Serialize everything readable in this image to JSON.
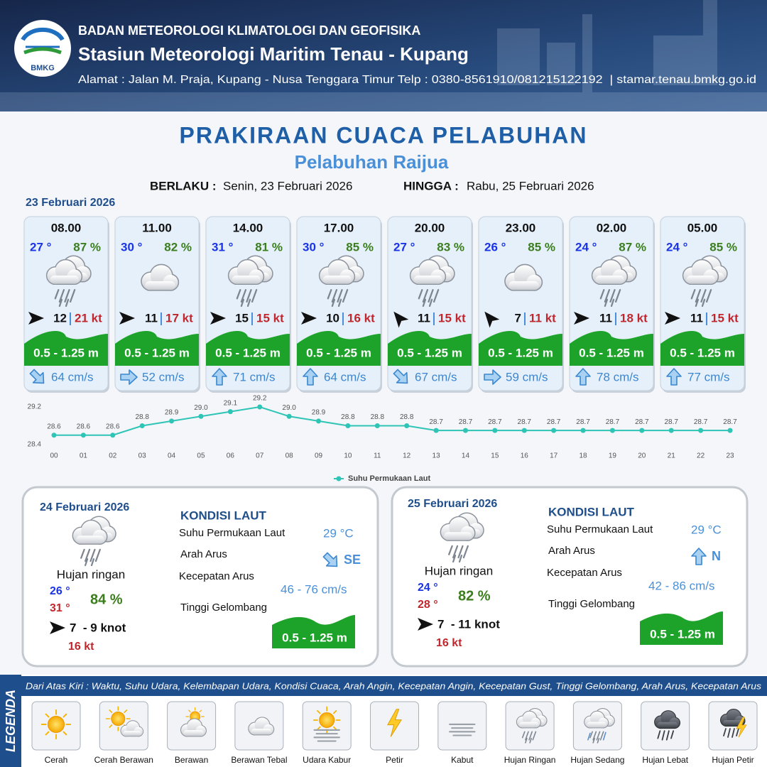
{
  "header": {
    "agency": "BADAN METEOROLOGI KLIMATOLOGI DAN GEOFISIKA",
    "station": "Stasiun Meteorologi Maritim Tenau - Kupang",
    "address": "Alamat : Jalan M. Praja, Kupang - Nusa Tenggara Timur Telp : 0380-8561910/081215122192  | stamar.tenau.bmkg.go.id",
    "logo": "BMKG"
  },
  "title": "PRAKIRAAN CUACA PELABUHAN",
  "subtitle": "Pelabuhan Raijua",
  "validity": {
    "from_label": "BERLAKU :",
    "from": "Senin, 23 Februari 2026",
    "until_label": "HINGGA :",
    "until": "Rabu, 25 Februari 2026"
  },
  "day1": {
    "date": "23 Februari 2026",
    "slots": [
      {
        "time": "08.00",
        "temperature": "27 °",
        "humidity": "87 %",
        "wind_speed": "12",
        "gust": "21 kt",
        "wave": "0.5 - 1.25 m",
        "current_speed": "64 cm/s"
      },
      {
        "time": "11.00",
        "temperature": "30 °",
        "humidity": "82 %",
        "wind_speed": "11",
        "gust": "17 kt",
        "wave": "0.5 - 1.25 m",
        "current_speed": "52 cm/s"
      },
      {
        "time": "14.00",
        "temperature": "31 °",
        "humidity": "81 %",
        "wind_speed": "15",
        "gust": "15 kt",
        "wave": "0.5 - 1.25 m",
        "current_speed": "71 cm/s"
      },
      {
        "time": "17.00",
        "temperature": "30 °",
        "humidity": "85 %",
        "wind_speed": "10",
        "gust": "16 kt",
        "wave": "0.5 - 1.25 m",
        "current_speed": "64 cm/s"
      },
      {
        "time": "20.00",
        "temperature": "27 °",
        "humidity": "83 %",
        "wind_speed": "11",
        "gust": "15 kt",
        "wave": "0.5 - 1.25 m",
        "current_speed": "67 cm/s"
      },
      {
        "time": "23.00",
        "temperature": "26 °",
        "humidity": "85 %",
        "wind_speed": "7",
        "gust": "11 kt",
        "wave": "0.5 - 1.25 m",
        "current_speed": "59 cm/s"
      },
      {
        "time": "02.00",
        "temperature": "24 °",
        "humidity": "87 %",
        "wind_speed": "11",
        "gust": "18 kt",
        "wave": "0.5 - 1.25 m",
        "current_speed": "78 cm/s"
      },
      {
        "time": "05.00",
        "temperature": "24 °",
        "humidity": "85 %",
        "wind_speed": "11",
        "gust": "15 kt",
        "wave": "0.5 - 1.25 m",
        "current_speed": "77 cm/s"
      }
    ]
  },
  "chart_data": {
    "type": "line",
    "categories": [
      "00",
      "01",
      "02",
      "03",
      "04",
      "05",
      "06",
      "07",
      "08",
      "09",
      "10",
      "11",
      "12",
      "13",
      "14",
      "15",
      "16",
      "17",
      "18",
      "19",
      "20",
      "21",
      "22",
      "23"
    ],
    "series": [
      {
        "name": "Suhu Permukaan Laut",
        "color": "#2ec4b6",
        "values": [
          28.6,
          28.6,
          28.6,
          28.8,
          28.9,
          29.0,
          29.1,
          29.2,
          29.0,
          28.9,
          28.8,
          28.8,
          28.8,
          28.7,
          28.7,
          28.7,
          28.7,
          28.7,
          28.7,
          28.7,
          28.7,
          28.7,
          28.7,
          28.7
        ],
        "value_labels": [
          "28.6",
          "28.6",
          "28.6",
          "28.8",
          "28.9",
          "29.0",
          "29.1",
          "29.2",
          "29.0",
          "28.9",
          "28.8",
          "28.8",
          "28.8",
          "28.7",
          "28.7",
          "28.7",
          "28.7",
          "28.7",
          "28.7",
          "28.7",
          "28.7",
          "28.7",
          "28.7",
          "28.7"
        ]
      }
    ],
    "ylim": [
      28.4,
      29.2
    ],
    "yticks": [
      28.4,
      29.2
    ],
    "grid": false,
    "legend": "bottom"
  },
  "outlook": [
    {
      "date": "24 Februari 2026",
      "condition": "Hujan ringan",
      "temp_min": "26 °",
      "temp_max": "31 °",
      "humidity": "84 %",
      "wind": "7  - 9 knot",
      "gust": "16 kt",
      "sea_title": "KONDISI LAUT",
      "sst_label": "Suhu Permukaan Laut",
      "sst": "29 °C",
      "current_dir_label": "Arah Arus",
      "current_dir": "SE",
      "current_speed_label": "Kecepatan Arus",
      "current_speed": "46 - 76 cm/s",
      "wave_label": "Tinggi Gelombang",
      "wave": "0.5 - 1.25 m"
    },
    {
      "date": "25 Februari 2026",
      "condition": "Hujan ringan",
      "temp_min": "24 °",
      "temp_max": "28 °",
      "humidity": "82 %",
      "wind": "7  - 11 knot",
      "gust": "16 kt",
      "sea_title": "KONDISI LAUT",
      "sst_label": "Suhu Permukaan Laut",
      "sst": "29 °C",
      "current_dir_label": "Arah Arus",
      "current_dir": "N",
      "current_speed_label": "Kecepatan Arus",
      "current_speed": "42 - 86 cm/s",
      "wave_label": "Tinggi Gelombang",
      "wave": "0.5 - 1.25 m"
    }
  ],
  "legend": {
    "title": "LEGENDA",
    "description": "Dari Atas Kiri : Waktu, Suhu Udara, Kelembapan Udara, Kondisi Cuaca, Arah Angin, Kecepatan Angin, Kecepatan Gust, Tinggi Gelombang, Arah Arus, Kecepatan Arus",
    "items": [
      "Cerah",
      "Cerah Berawan",
      "Berawan",
      "Berawan Tebal",
      "Udara Kabur",
      "Petir",
      "Kabut",
      "Hujan Ringan",
      "Hujan Sedang",
      "Hujan Lebat",
      "Hujan Petir"
    ]
  }
}
